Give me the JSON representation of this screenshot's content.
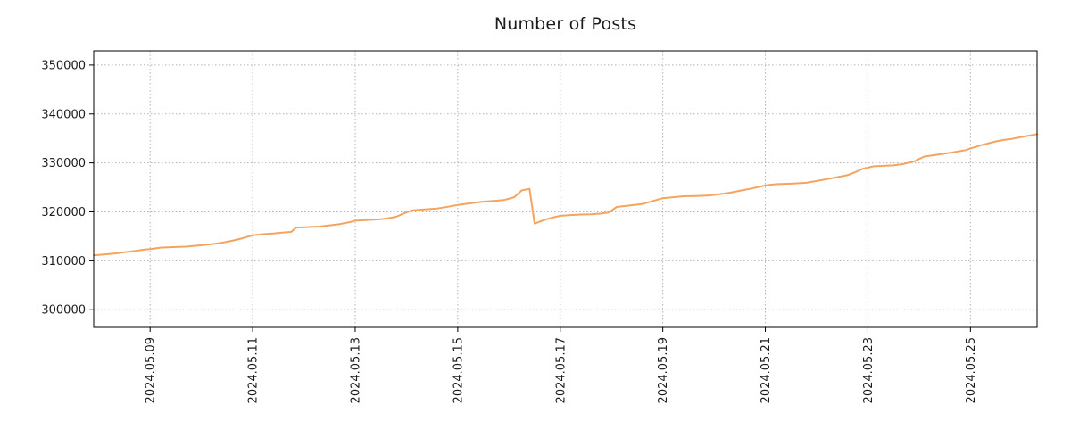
{
  "title": "Number of Posts",
  "chart_data": {
    "type": "line",
    "title": "Number of Posts",
    "xlabel": "",
    "ylabel": "",
    "grid": true,
    "grid_style": "dotted",
    "legend": "none",
    "line_color": "#f4a460",
    "grid_color": "#b3b3b3",
    "axis_color": "#000000",
    "text_color": "#1c1c1c",
    "x_unit": "day of month, May 2024 (fractional)",
    "xlim": [
      7.9,
      26.3
    ],
    "ylim": [
      296400,
      352900
    ],
    "x_ticks": [
      {
        "value": 9,
        "label": "2024.05.09"
      },
      {
        "value": 11,
        "label": "2024.05.11"
      },
      {
        "value": 13,
        "label": "2024.05.13"
      },
      {
        "value": 15,
        "label": "2024.05.15"
      },
      {
        "value": 17,
        "label": "2024.05.17"
      },
      {
        "value": 19,
        "label": "2024.05.19"
      },
      {
        "value": 21,
        "label": "2024.05.21"
      },
      {
        "value": 23,
        "label": "2024.05.23"
      },
      {
        "value": 25,
        "label": "2024.05.25"
      }
    ],
    "y_ticks": [
      {
        "value": 300000,
        "label": "300000"
      },
      {
        "value": 310000,
        "label": "310000"
      },
      {
        "value": 320000,
        "label": "320000"
      },
      {
        "value": 330000,
        "label": "330000"
      },
      {
        "value": 340000,
        "label": "340000"
      },
      {
        "value": 350000,
        "label": "350000"
      }
    ],
    "points": [
      [
        7.9,
        311100
      ],
      [
        8.1,
        311300
      ],
      [
        8.3,
        311500
      ],
      [
        8.5,
        311750
      ],
      [
        8.7,
        312000
      ],
      [
        8.9,
        312300
      ],
      [
        9.0,
        312400
      ],
      [
        9.2,
        312700
      ],
      [
        9.45,
        312800
      ],
      [
        9.7,
        312900
      ],
      [
        9.95,
        313150
      ],
      [
        10.2,
        313400
      ],
      [
        10.4,
        313700
      ],
      [
        10.6,
        314100
      ],
      [
        10.8,
        314600
      ],
      [
        11.0,
        315200
      ],
      [
        11.2,
        315450
      ],
      [
        11.4,
        315600
      ],
      [
        11.6,
        315800
      ],
      [
        11.75,
        315900
      ],
      [
        11.85,
        316800
      ],
      [
        12.1,
        316900
      ],
      [
        12.3,
        317000
      ],
      [
        12.5,
        317250
      ],
      [
        12.7,
        317500
      ],
      [
        12.9,
        317900
      ],
      [
        13.0,
        318200
      ],
      [
        13.25,
        318350
      ],
      [
        13.5,
        318500
      ],
      [
        13.65,
        318700
      ],
      [
        13.8,
        319000
      ],
      [
        13.95,
        319700
      ],
      [
        14.1,
        320300
      ],
      [
        14.35,
        320500
      ],
      [
        14.6,
        320700
      ],
      [
        14.8,
        321050
      ],
      [
        15.0,
        321400
      ],
      [
        15.25,
        321750
      ],
      [
        15.5,
        322100
      ],
      [
        15.7,
        322250
      ],
      [
        15.9,
        322400
      ],
      [
        16.1,
        323000
      ],
      [
        16.25,
        324400
      ],
      [
        16.4,
        324700
      ],
      [
        16.5,
        317600
      ],
      [
        16.65,
        318200
      ],
      [
        16.8,
        318700
      ],
      [
        17.0,
        319200
      ],
      [
        17.2,
        319350
      ],
      [
        17.4,
        319450
      ],
      [
        17.6,
        319500
      ],
      [
        17.8,
        319650
      ],
      [
        17.95,
        319900
      ],
      [
        18.1,
        321000
      ],
      [
        18.35,
        321300
      ],
      [
        18.6,
        321600
      ],
      [
        18.8,
        322200
      ],
      [
        19.0,
        322800
      ],
      [
        19.2,
        323000
      ],
      [
        19.4,
        323200
      ],
      [
        19.65,
        323250
      ],
      [
        19.9,
        323350
      ],
      [
        20.1,
        323600
      ],
      [
        20.3,
        323900
      ],
      [
        20.5,
        324300
      ],
      [
        20.7,
        324700
      ],
      [
        20.85,
        325050
      ],
      [
        21.0,
        325400
      ],
      [
        21.15,
        325600
      ],
      [
        21.3,
        325700
      ],
      [
        21.55,
        325800
      ],
      [
        21.8,
        325950
      ],
      [
        22.0,
        326300
      ],
      [
        22.2,
        326700
      ],
      [
        22.4,
        327100
      ],
      [
        22.6,
        327500
      ],
      [
        22.75,
        328100
      ],
      [
        22.9,
        328800
      ],
      [
        23.1,
        329300
      ],
      [
        23.3,
        329400
      ],
      [
        23.5,
        329500
      ],
      [
        23.7,
        329800
      ],
      [
        23.9,
        330300
      ],
      [
        24.1,
        331300
      ],
      [
        24.3,
        331600
      ],
      [
        24.5,
        331900
      ],
      [
        24.7,
        332250
      ],
      [
        24.9,
        332600
      ],
      [
        25.05,
        333100
      ],
      [
        25.2,
        333600
      ],
      [
        25.35,
        334000
      ],
      [
        25.5,
        334400
      ],
      [
        25.65,
        334700
      ],
      [
        25.8,
        334900
      ],
      [
        25.95,
        335200
      ],
      [
        26.1,
        335500
      ],
      [
        26.3,
        335900
      ]
    ]
  }
}
